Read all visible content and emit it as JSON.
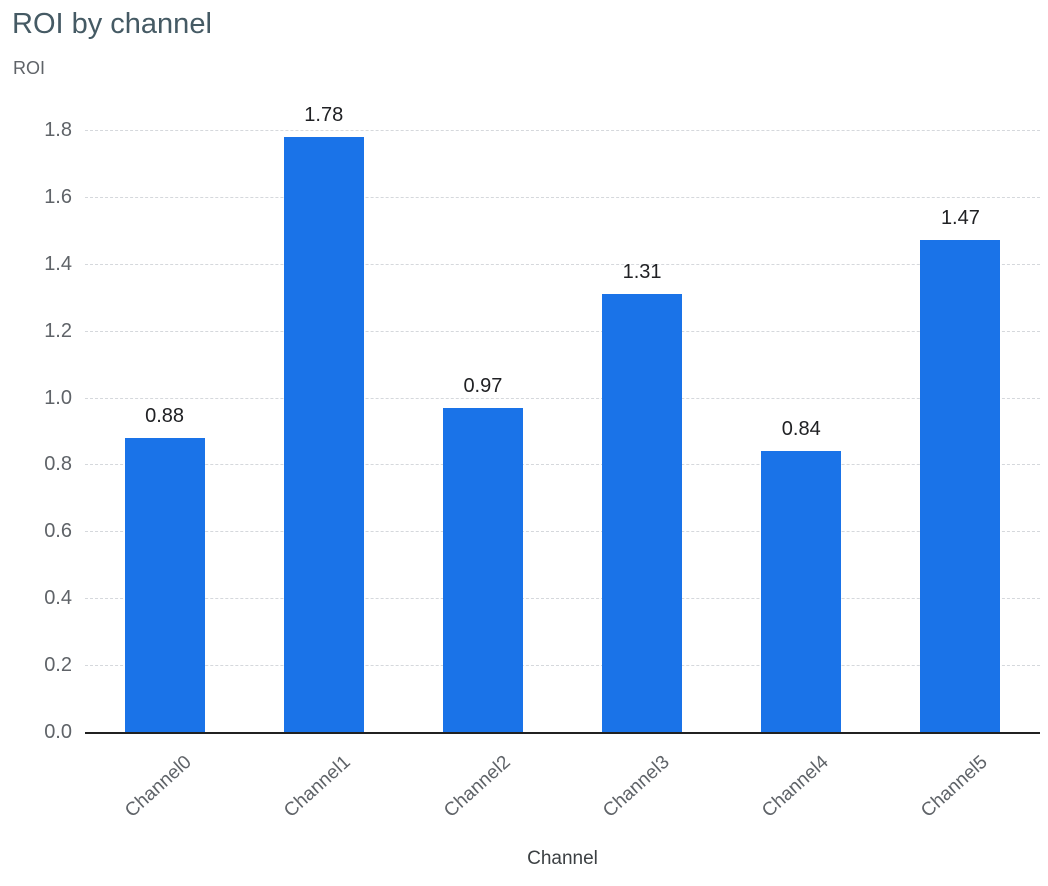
{
  "page": {
    "background": "#ffffff"
  },
  "chart_data": {
    "type": "bar",
    "title": "ROI by channel",
    "xlabel": "Channel",
    "ylabel": "ROI",
    "categories": [
      "Channel0",
      "Channel1",
      "Channel2",
      "Channel3",
      "Channel4",
      "Channel5"
    ],
    "values": [
      0.88,
      1.78,
      0.97,
      1.31,
      0.84,
      1.47
    ],
    "bar_labels": [
      "0.88",
      "1.78",
      "0.97",
      "1.31",
      "0.84",
      "1.47"
    ],
    "ylim": [
      0,
      1.8
    ],
    "yticks": [
      0,
      0.2,
      0.4,
      0.6,
      0.8,
      1.0,
      1.2,
      1.4,
      1.6,
      1.8
    ],
    "ytick_labels": [
      "0.0",
      "0.2",
      "0.4",
      "0.6",
      "0.8",
      "1.0",
      "1.2",
      "1.4",
      "1.6",
      "1.8"
    ],
    "grid": "horizontal-dashed",
    "legend": "none",
    "colors": {
      "bar": "#1a73e8",
      "title": "#455a64",
      "axis_title": "#5f6368",
      "tick_label": "#5f6368",
      "value_label": "#202124",
      "background": "#ffffff"
    }
  }
}
